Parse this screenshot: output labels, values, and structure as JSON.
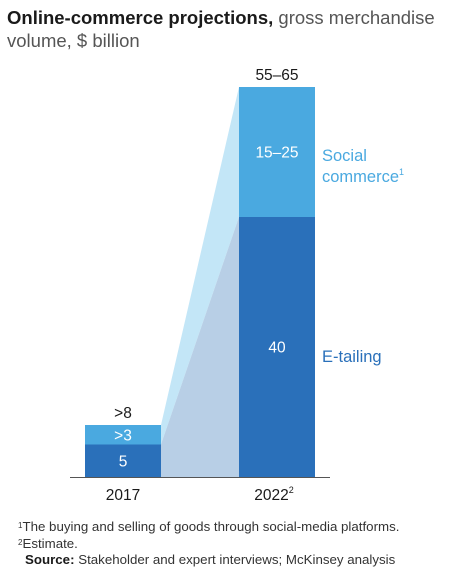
{
  "title": {
    "bold": "Online-commerce projections,",
    "subtitle": " gross merchandise volume, $ billion"
  },
  "chart_data": {
    "type": "bar",
    "stacked": true,
    "categories": [
      "2017",
      "2022"
    ],
    "category_footnotes": [
      "",
      "2"
    ],
    "series": [
      {
        "name": "E-tailing",
        "values": [
          5,
          40
        ],
        "value_labels": [
          "5",
          "40"
        ],
        "color": "#2a70ba",
        "legend": "E-tailing",
        "legend_footnote": ""
      },
      {
        "name": "Social commerce",
        "values": [
          3,
          20
        ],
        "value_labels": [
          ">3",
          "15–25"
        ],
        "color": "#4aa9e0",
        "legend": "Social commerce",
        "legend_footnote": "1"
      }
    ],
    "totals": [
      ">8",
      "55–65"
    ],
    "connector_colors": {
      "top": "#c3e6f7",
      "bottom": "#b8cfe6"
    },
    "label_colors": {
      "E-tailing": "#2a70ba",
      "Social commerce": "#4aa9e0"
    },
    "ylim": [
      0,
      60
    ]
  },
  "footnotes": {
    "note1_mark": "1",
    "note1": "The buying and selling of goods through social-media platforms.",
    "note2_mark": "2",
    "note2": "Estimate.",
    "source_label": "Source:",
    "source": " Stakeholder and expert interviews; McKinsey analysis"
  }
}
